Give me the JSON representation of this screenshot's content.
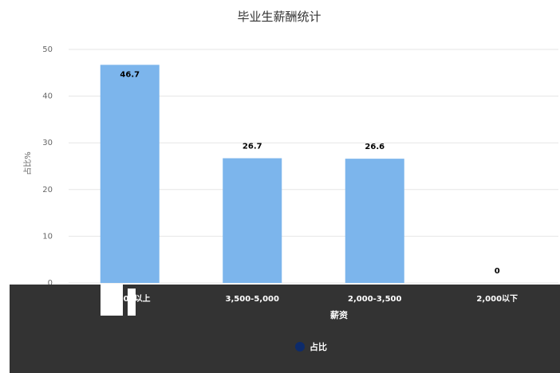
{
  "chart_data": {
    "type": "bar",
    "title": "毕业生薪酬统计",
    "xlabel": "薪资",
    "ylabel": "占比%",
    "categories": [
      "5,000以上",
      "3,500-5,000",
      "2,000-3,500",
      "2,000以下"
    ],
    "series": [
      {
        "name": "占比",
        "values": [
          46.7,
          26.7,
          26.6,
          0
        ]
      }
    ],
    "data_labels": [
      "46.7",
      "26.7",
      "26.6",
      "0"
    ],
    "ylim": [
      0,
      50
    ],
    "yticks": [
      "0",
      "10",
      "20",
      "30",
      "40",
      "50"
    ],
    "grid": true,
    "legend_position": "bottom",
    "colors": {
      "bar": "#7cb5ec",
      "legend_marker": "#0d2b6b",
      "footer_band": "#333333",
      "grid": "#e6e6e6"
    }
  }
}
